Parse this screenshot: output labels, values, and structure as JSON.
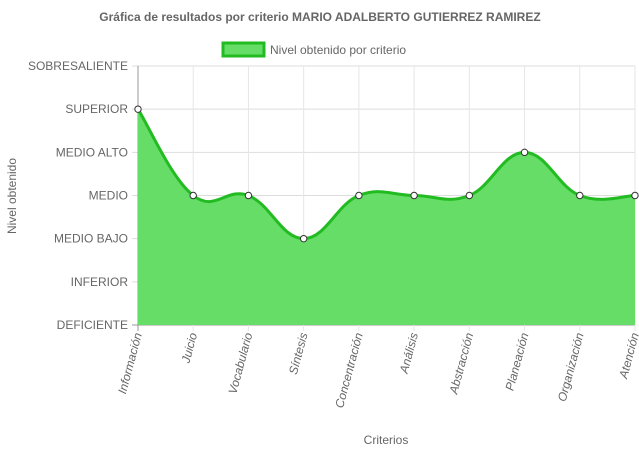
{
  "chart_data": {
    "type": "area",
    "title": "Gráfica de resultados por criterio MARIO ADALBERTO GUTIERREZ RAMIREZ",
    "xlabel": "Criterios",
    "ylabel": "Nivel obtenido",
    "categories": [
      "Información",
      "Juicio",
      "Vocabulario",
      "Síntesis",
      "Concentración",
      "Análisis",
      "Abstracción",
      "Planeación",
      "Organización",
      "Atención"
    ],
    "levels": [
      "DEFICIENTE",
      "INFERIOR",
      "MEDIO BAJO",
      "MEDIO",
      "MEDIO ALTO",
      "SUPERIOR",
      "SOBRESALIENTE"
    ],
    "series": [
      {
        "name": "Nivel obtenido por criterio",
        "values": [
          5,
          3,
          3,
          2,
          3,
          3,
          3,
          4,
          3,
          3
        ],
        "fill_color": "#66dd66",
        "line_color": "#22bb22"
      }
    ],
    "ylim": [
      0,
      6
    ],
    "grid": true,
    "legend_position": "top"
  }
}
